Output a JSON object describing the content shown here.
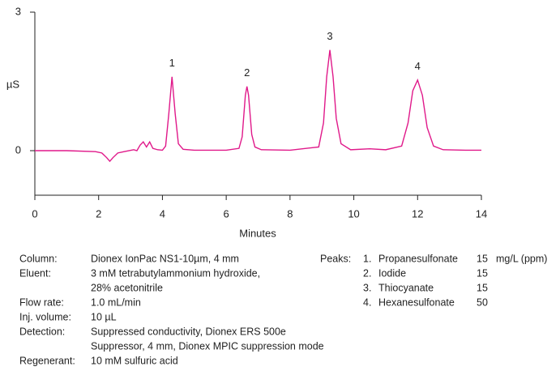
{
  "chart_data": {
    "type": "line",
    "y_label": "µS",
    "x_label": "Minutes",
    "xlim": [
      0,
      14
    ],
    "xticks": [
      0,
      2,
      4,
      6,
      8,
      10,
      12,
      14
    ],
    "ylim": [
      -1,
      3
    ],
    "yticks": [
      0,
      3
    ],
    "x": [
      0,
      1,
      1.9,
      2.1,
      2.25,
      2.35,
      2.45,
      2.6,
      2.8,
      3.1,
      3.2,
      3.3,
      3.4,
      3.5,
      3.6,
      3.7,
      3.85,
      4.0,
      4.1,
      4.2,
      4.3,
      4.4,
      4.5,
      4.65,
      5.0,
      6.0,
      6.4,
      6.5,
      6.6,
      6.65,
      6.7,
      6.8,
      6.9,
      7.1,
      8.0,
      8.9,
      9.05,
      9.15,
      9.25,
      9.35,
      9.45,
      9.6,
      9.9,
      10.5,
      11.0,
      11.5,
      11.7,
      11.85,
      12.0,
      12.15,
      12.3,
      12.5,
      12.8,
      13.5,
      14.0
    ],
    "series": [
      {
        "color": "#e0198a",
        "values": [
          0,
          0,
          -0.02,
          -0.05,
          -0.15,
          -0.23,
          -0.15,
          -0.05,
          -0.02,
          0.02,
          0,
          0.12,
          0.19,
          0.08,
          0.19,
          0.05,
          0.02,
          0.01,
          0.1,
          0.8,
          1.6,
          0.8,
          0.15,
          0.03,
          0.01,
          0.01,
          0.05,
          0.3,
          1.2,
          1.39,
          1.2,
          0.35,
          0.08,
          0.02,
          0.01,
          0.08,
          0.6,
          1.6,
          2.18,
          1.6,
          0.7,
          0.15,
          0.02,
          0.04,
          0.02,
          0.1,
          0.6,
          1.3,
          1.53,
          1.2,
          0.5,
          0.1,
          0.02,
          0.01,
          0.01
        ]
      }
    ],
    "peak_labels": [
      {
        "text": "1",
        "x": 4.3
      },
      {
        "text": "2",
        "x": 6.65
      },
      {
        "text": "3",
        "x": 9.25
      },
      {
        "text": "4",
        "x": 12.0
      }
    ]
  },
  "conditions": [
    {
      "label": "Column:",
      "lines": [
        "Dionex IonPac NS1-10µm, 4 mm"
      ]
    },
    {
      "label": "Eluent:",
      "lines": [
        "3 mM tetrabutylammonium hydroxide,",
        "28% acetonitrile"
      ]
    },
    {
      "label": "Flow rate:",
      "lines": [
        "1.0 mL/min"
      ]
    },
    {
      "label": "Inj. volume:",
      "lines": [
        "10 µL"
      ]
    },
    {
      "label": "Detection:",
      "lines": [
        "Suppressed conductivity, Dionex ERS 500e",
        "Suppressor, 4 mm, Dionex MPIC suppression mode"
      ]
    },
    {
      "label": "Regenerant:",
      "lines": [
        "10 mM sulfuric acid"
      ]
    }
  ],
  "peaks": {
    "label": "Peaks:",
    "rows": [
      [
        "1.",
        "Propanesulfonate",
        15,
        "mg/L (ppm)"
      ],
      [
        "2.",
        "Iodide",
        15
      ],
      [
        "3.",
        "Thiocyanate",
        15
      ],
      [
        "4.",
        "Hexanesulfonate",
        50
      ]
    ]
  }
}
